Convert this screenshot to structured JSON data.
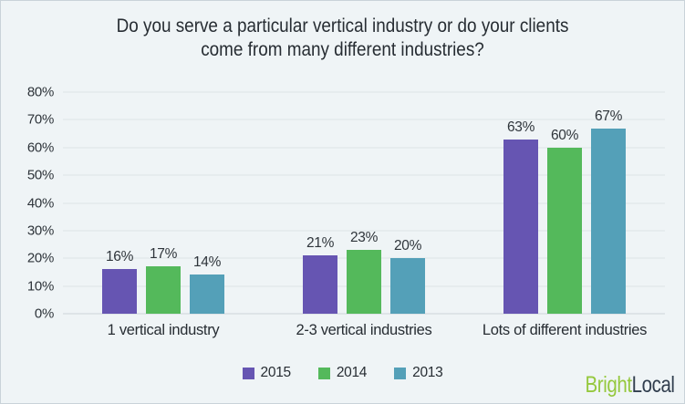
{
  "chart_data": {
    "type": "bar",
    "title": "Do you serve a particular vertical industry or do your clients come from many different industries?",
    "title_lines": [
      "Do you serve a particular vertical industry or do your clients",
      "come from many different industries?"
    ],
    "categories": [
      "1 vertical industry",
      "2-3 vertical industries",
      "Lots of different industries"
    ],
    "series": [
      {
        "name": "2015",
        "color": "#6655b2",
        "values": [
          16,
          21,
          63
        ]
      },
      {
        "name": "2014",
        "color": "#54b95b",
        "values": [
          17,
          23,
          60
        ]
      },
      {
        "name": "2013",
        "color": "#54a0b8",
        "values": [
          14,
          20,
          67
        ]
      }
    ],
    "xlabel": "",
    "ylabel": "",
    "ylim": [
      0,
      80
    ],
    "ytick_step": 10,
    "ytick_suffix": "%",
    "value_label_suffix": "%",
    "grid": true,
    "legend_position": "bottom"
  },
  "footer": {
    "logo_bright": "Bright",
    "logo_local": "Local"
  },
  "colors": {
    "background": "#eff4f6",
    "frame_border": "#c9d3d9",
    "gridline": "#dde3e6",
    "baseline": "#ccd4d8",
    "text": "#272d33",
    "logo_green": "#95c83d",
    "logo_navy": "#313e4e"
  }
}
